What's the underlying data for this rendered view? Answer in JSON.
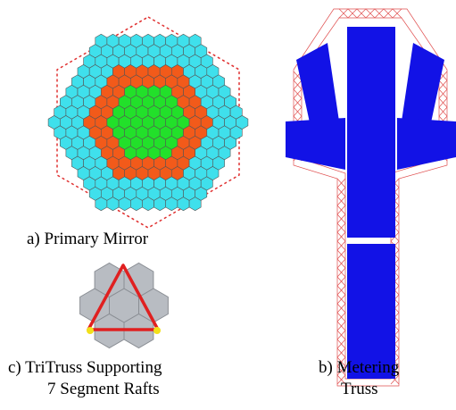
{
  "figure": {
    "captions": {
      "primary_mirror": "a) Primary Mirror",
      "metering_truss_line1": "b) Metering",
      "metering_truss_line2": "Truss",
      "tritruss_line1": "c) TriTruss Supporting",
      "tritruss_line2": "7 Segment Rafts"
    },
    "colors": {
      "outer_ring": "#3fe0ec",
      "middle_ring": "#f25a1a",
      "inner_core": "#22e02a",
      "segment_edge": "#555555",
      "mirror_outline": "#e03030",
      "truss_lattice": "#e05050",
      "truss_body": "#1212e6",
      "tritruss_segments": "#b8bcc2",
      "tritruss_triangle": "#e02020",
      "tritruss_nodes": "#f2e01a"
    }
  }
}
